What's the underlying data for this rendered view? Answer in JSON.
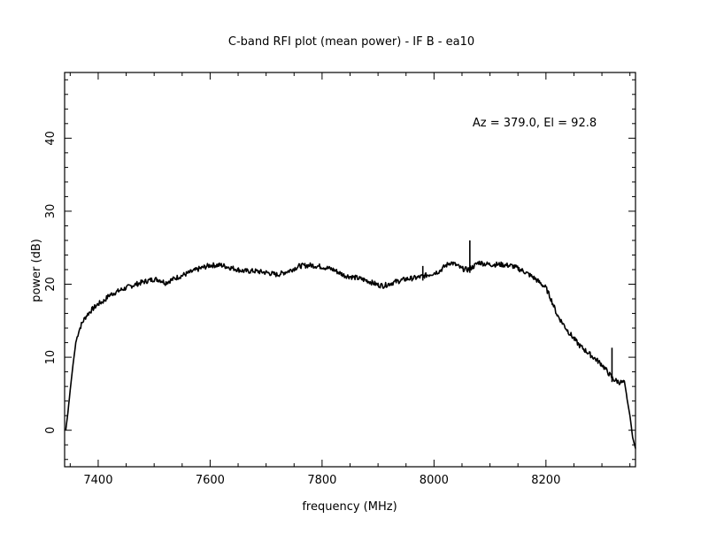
{
  "chart_data": {
    "type": "line",
    "title": "C-band RFI plot (mean power) - IF B - ea10",
    "xlabel": "frequency (MHz)",
    "ylabel": "power (dB)",
    "annotation": "Az = 379.0, El = 92.8",
    "xlim": [
      7340,
      8360
    ],
    "ylim": [
      -5,
      49
    ],
    "x_ticks": [
      7400,
      7600,
      7800,
      8000,
      8200
    ],
    "y_ticks": [
      0,
      10,
      20,
      30,
      40
    ],
    "line_color": "#000000",
    "series": [
      {
        "x": [
          7342,
          7346,
          7350,
          7355,
          7360,
          7365,
          7370,
          7375,
          7380,
          7390,
          7400,
          7410,
          7420,
          7440,
          7460,
          7480,
          7500,
          7510,
          7520,
          7540,
          7560,
          7580,
          7600,
          7620,
          7640,
          7660,
          7680,
          7700,
          7720,
          7740,
          7760,
          7780,
          7800,
          7820,
          7840,
          7860,
          7880,
          7900,
          7910,
          7930,
          7950,
          7970,
          7990,
          8010,
          8020,
          8030,
          8040,
          8050,
          8060,
          8070,
          8080,
          8090,
          8100,
          8120,
          8140,
          8160,
          8180,
          8200,
          8210,
          8220,
          8240,
          8260,
          8280,
          8300,
          8310,
          8320,
          8330,
          8340,
          8350,
          8355,
          8360
        ],
        "y": [
          0,
          2.5,
          5.5,
          9,
          12,
          13.5,
          14.5,
          15.2,
          15.8,
          16.6,
          17.3,
          17.7,
          18.5,
          19.2,
          19.8,
          20.3,
          20.7,
          20.6,
          20.2,
          20.9,
          21.5,
          22.1,
          22.6,
          22.6,
          22.2,
          21.8,
          21.8,
          21.6,
          21.3,
          21.8,
          22.5,
          22.6,
          22.4,
          22.0,
          21.2,
          20.9,
          20.5,
          19.9,
          19.8,
          20.3,
          20.7,
          20.9,
          21.3,
          21.8,
          22.5,
          23.0,
          22.6,
          22.1,
          22.0,
          22.4,
          23.0,
          22.8,
          22.7,
          22.7,
          22.5,
          21.8,
          20.8,
          19.5,
          17.8,
          15.8,
          13.5,
          11.6,
          10.3,
          9.0,
          8.0,
          7.0,
          6.6,
          6.5,
          2.0,
          -1.0,
          -2.5
        ]
      }
    ],
    "spikes": [
      {
        "x": 7980,
        "y": 22.5
      },
      {
        "x": 8064,
        "y": 26.0
      },
      {
        "x": 8318,
        "y": 11.3
      }
    ]
  }
}
